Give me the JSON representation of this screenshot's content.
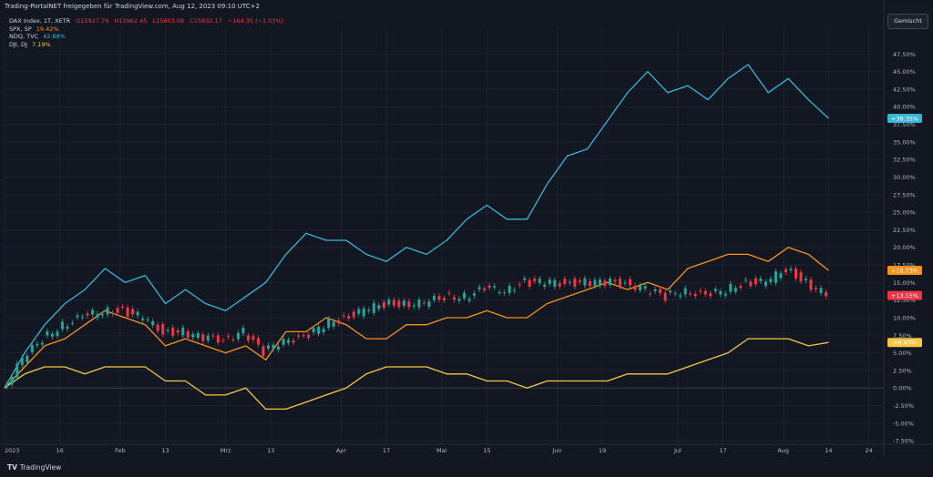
{
  "header": {
    "published_by": "Trading-PortalNET freigegeben für TradingView.com, Aug 12, 2023 09:10 UTC+2"
  },
  "legend": {
    "main": {
      "symbol": "DAX Index, 1T, XETR",
      "o": "O15927.79",
      "h": "H15962.45",
      "l": "L15803.08",
      "c": "C15832.17",
      "chg": "−164.35 (−1.03%)"
    },
    "rows": [
      {
        "symbol": "SPX, SP",
        "value": "19.42%",
        "color": "#f7931a"
      },
      {
        "symbol": "NDQ, TVC",
        "value": "42.68%",
        "color": "#37b7d6"
      },
      {
        "symbol": "DJI, DJ",
        "value": "7.19%",
        "color": "#f5c842"
      }
    ]
  },
  "scale_mode_button": {
    "label": "Gemischt"
  },
  "brand": {
    "logo": "TV",
    "name": "TradingView"
  },
  "chart_data": {
    "type": "line",
    "description_axes": "x: trading days Jan–Aug 2023; y: percent change from start",
    "ylim": [
      -8,
      50
    ],
    "y_ticks": [
      "47.50%",
      "45.00%",
      "42.50%",
      "40.00%",
      "37.50%",
      "35.00%",
      "32.50%",
      "30.00%",
      "27.50%",
      "25.00%",
      "22.50%",
      "20.00%",
      "17.50%",
      "15.00%",
      "12.50%",
      "10.00%",
      "7.50%",
      "5.00%",
      "2.50%",
      "0.00%",
      "-2.50%",
      "-5.00%",
      "-7.50%"
    ],
    "y_tick_values": [
      47.5,
      45,
      42.5,
      40,
      37.5,
      35,
      32.5,
      30,
      27.5,
      25,
      22.5,
      20,
      17.5,
      15,
      12.5,
      10,
      7.5,
      5,
      2.5,
      0,
      -2.5,
      -5,
      -7.5
    ],
    "x_ticks": [
      "2023",
      "16",
      "Feb",
      "13",
      "Mrz",
      "13",
      "Apr",
      "17",
      "Mai",
      "15",
      "Jun",
      "19",
      "Jul",
      "17",
      "Aug",
      "14",
      "24"
    ],
    "x_tick_days": [
      0,
      11,
      23,
      32,
      44,
      53,
      67,
      76,
      87,
      96,
      110,
      119,
      134,
      143,
      155,
      164,
      172
    ],
    "x_days": [
      0,
      4,
      8,
      12,
      16,
      20,
      24,
      28,
      32,
      36,
      40,
      44,
      48,
      52,
      56,
      60,
      64,
      68,
      72,
      76,
      80,
      84,
      88,
      92,
      96,
      100,
      104,
      108,
      112,
      116,
      120,
      124,
      128,
      132,
      136,
      140,
      144,
      148,
      152,
      156,
      160,
      164
    ],
    "badges": [
      {
        "label": "+38.35%",
        "value": 38.35,
        "color": "#37b7d6"
      },
      {
        "label": "+16.73%",
        "value": 16.73,
        "color": "#f7931a"
      },
      {
        "label": "+13.15%",
        "value": 13.15,
        "color": "#f23645"
      },
      {
        "label": "+6.47%",
        "value": 6.47,
        "color": "#f5c842"
      }
    ],
    "series": [
      {
        "name": "NDQ, TVC",
        "color": "#37b7d6",
        "values": [
          0,
          5,
          9,
          12,
          14,
          17,
          15,
          16,
          12,
          14,
          12,
          11,
          13,
          15,
          19,
          22,
          21,
          21,
          19,
          18,
          20,
          19,
          21,
          24,
          26,
          24,
          24,
          29,
          33,
          34,
          38,
          42,
          45,
          42,
          43,
          41,
          44,
          46,
          42,
          44,
          41,
          38.35
        ]
      },
      {
        "name": "SPX, SP",
        "color": "#f7931a",
        "values": [
          0,
          3,
          6,
          7,
          9,
          11,
          10,
          9,
          6,
          7,
          6,
          5,
          6,
          4,
          8,
          8,
          10,
          9,
          7,
          7,
          9,
          9,
          10,
          10,
          11,
          10,
          10,
          12,
          13,
          14,
          15,
          14,
          15,
          14,
          17,
          18,
          19,
          19,
          18,
          20,
          19,
          16.73
        ]
      },
      {
        "name": "DJI, DJ",
        "color": "#f5c842",
        "values": [
          0,
          2,
          3,
          3,
          2,
          3,
          3,
          3,
          1,
          1,
          -1,
          -1,
          0,
          -3,
          -3,
          -2,
          -1,
          0,
          2,
          3,
          3,
          3,
          2,
          2,
          1,
          1,
          0,
          1,
          1,
          1,
          1,
          2,
          2,
          2,
          3,
          4,
          5,
          7,
          7,
          7,
          6,
          6.47
        ]
      },
      {
        "name": "DAX Index, 1T, XETR",
        "color": "#26a69a",
        "values": [
          0,
          4,
          7,
          9,
          10,
          11,
          11,
          10,
          8,
          8,
          7,
          7,
          8,
          5,
          7,
          7,
          9,
          10,
          11,
          12,
          12,
          12,
          13,
          13,
          14,
          14,
          15,
          15,
          15,
          15,
          15,
          15,
          14,
          13,
          14,
          13,
          14,
          15,
          15,
          17,
          15,
          13.15
        ]
      }
    ]
  },
  "colors": {
    "bg": "#131722",
    "grid": "#1f2330",
    "axis_text": "#b2b5be",
    "up": "#26a69a",
    "down": "#f23645"
  }
}
